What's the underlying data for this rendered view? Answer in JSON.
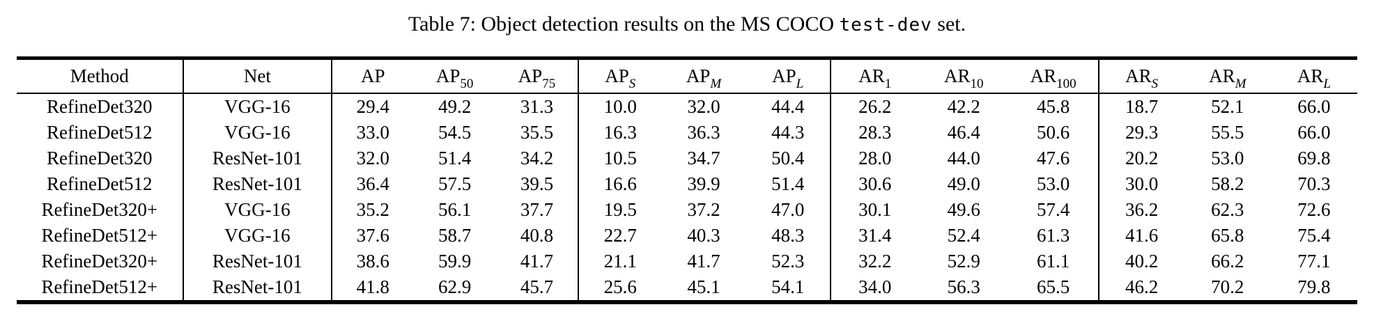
{
  "caption": {
    "prefix": "Table 7: Object detection results on the MS COCO ",
    "code": "test-dev",
    "suffix": " set."
  },
  "colors": {
    "text": "#000000",
    "background": "#ffffff",
    "rule": "#000000"
  },
  "table": {
    "columns": [
      {
        "base": "Method"
      },
      {
        "base": "Net"
      },
      {
        "base": "AP"
      },
      {
        "base": "AP",
        "sub": "50"
      },
      {
        "base": "AP",
        "sub": "75"
      },
      {
        "base": "AP",
        "sub": "S",
        "italic_sub": true
      },
      {
        "base": "AP",
        "sub": "M",
        "italic_sub": true
      },
      {
        "base": "AP",
        "sub": "L",
        "italic_sub": true
      },
      {
        "base": "AR",
        "sub": "1"
      },
      {
        "base": "AR",
        "sub": "10"
      },
      {
        "base": "AR",
        "sub": "100"
      },
      {
        "base": "AR",
        "sub": "S",
        "italic_sub": true
      },
      {
        "base": "AR",
        "sub": "M",
        "italic_sub": true
      },
      {
        "base": "AR",
        "sub": "L",
        "italic_sub": true
      }
    ],
    "group_border_after": [
      0,
      1,
      4,
      7,
      10
    ],
    "col_widths_pct": [
      12.4,
      11.1,
      6.1,
      6.15,
      6.15,
      6.2,
      6.3,
      6.3,
      6.6,
      6.7,
      6.7,
      6.4,
      6.45,
      6.45
    ],
    "rows": [
      {
        "method": "RefineDet320",
        "net": "VGG-16",
        "values": [
          "29.4",
          "49.2",
          "31.3",
          "10.0",
          "32.0",
          "44.4",
          "26.2",
          "42.2",
          "45.8",
          "18.7",
          "52.1",
          "66.0"
        ]
      },
      {
        "method": "RefineDet512",
        "net": "VGG-16",
        "values": [
          "33.0",
          "54.5",
          "35.5",
          "16.3",
          "36.3",
          "44.3",
          "28.3",
          "46.4",
          "50.6",
          "29.3",
          "55.5",
          "66.0"
        ]
      },
      {
        "method": "RefineDet320",
        "net": "ResNet-101",
        "values": [
          "32.0",
          "51.4",
          "34.2",
          "10.5",
          "34.7",
          "50.4",
          "28.0",
          "44.0",
          "47.6",
          "20.2",
          "53.0",
          "69.8"
        ]
      },
      {
        "method": "RefineDet512",
        "net": "ResNet-101",
        "values": [
          "36.4",
          "57.5",
          "39.5",
          "16.6",
          "39.9",
          "51.4",
          "30.6",
          "49.0",
          "53.0",
          "30.0",
          "58.2",
          "70.3"
        ]
      },
      {
        "method": "RefineDet320+",
        "net": "VGG-16",
        "values": [
          "35.2",
          "56.1",
          "37.7",
          "19.5",
          "37.2",
          "47.0",
          "30.1",
          "49.6",
          "57.4",
          "36.2",
          "62.3",
          "72.6"
        ]
      },
      {
        "method": "RefineDet512+",
        "net": "VGG-16",
        "values": [
          "37.6",
          "58.7",
          "40.8",
          "22.7",
          "40.3",
          "48.3",
          "31.4",
          "52.4",
          "61.3",
          "41.6",
          "65.8",
          "75.4"
        ]
      },
      {
        "method": "RefineDet320+",
        "net": "ResNet-101",
        "values": [
          "38.6",
          "59.9",
          "41.7",
          "21.1",
          "41.7",
          "52.3",
          "32.2",
          "52.9",
          "61.1",
          "40.2",
          "66.2",
          "77.1"
        ]
      },
      {
        "method": "RefineDet512+",
        "net": "ResNet-101",
        "values": [
          "41.8",
          "62.9",
          "45.7",
          "25.6",
          "45.1",
          "54.1",
          "34.0",
          "56.3",
          "65.5",
          "46.2",
          "70.2",
          "79.8"
        ]
      }
    ]
  }
}
